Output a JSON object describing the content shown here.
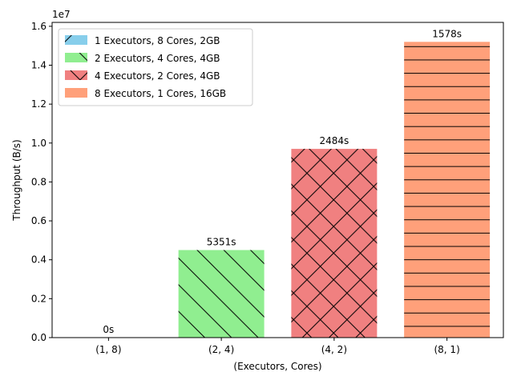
{
  "chart_data": {
    "type": "bar",
    "xlabel": "(Executors, Cores)",
    "ylabel": "Throughput (B/s)",
    "y_multiplier": "1e7",
    "ylim": [
      0,
      16200000
    ],
    "yticks": [
      0,
      2000000,
      4000000,
      6000000,
      8000000,
      10000000,
      12000000,
      14000000,
      16000000
    ],
    "ytick_labels": [
      "0.0",
      "0.2",
      "0.4",
      "0.6",
      "0.8",
      "1.0",
      "1.2",
      "1.4",
      "1.6"
    ],
    "categories": [
      "(1, 8)",
      "(2, 4)",
      "(4, 2)",
      "(8, 1)"
    ],
    "values": [
      0,
      4500000,
      9700000,
      15200000
    ],
    "bar_labels": [
      "0s",
      "5351s",
      "2484s",
      "1578s"
    ],
    "legend_placement": "upper-left",
    "series": [
      {
        "name": "1 Executors, 8 Cores, 2GB",
        "color": "#87ceeb",
        "hatch": "forward-diagonal"
      },
      {
        "name": "2 Executors, 4 Cores, 4GB",
        "color": "#90ee90",
        "hatch": "back-diagonal"
      },
      {
        "name": "4 Executors, 2 Cores, 4GB",
        "color": "#f08080",
        "hatch": "crosshatch"
      },
      {
        "name": "8 Executors, 1 Cores, 16GB",
        "color": "#ffa07a",
        "hatch": "horizontal"
      }
    ]
  }
}
